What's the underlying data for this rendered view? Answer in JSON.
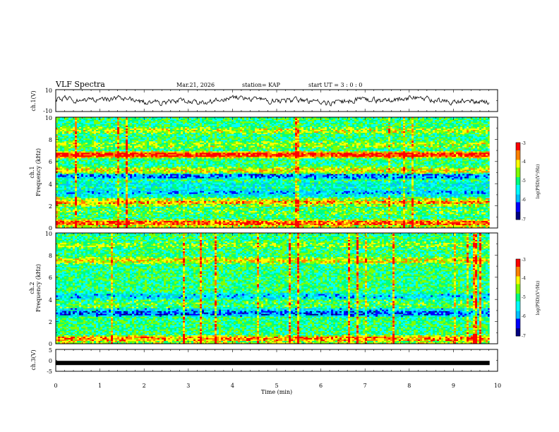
{
  "header": {
    "title": "VLF Spectra",
    "date": "Mar.21, 2026",
    "station": "station= KAP",
    "start_time": "start  UT =   3  : 0  : 0"
  },
  "colorbar": {
    "label": "log(PSD)(V²/Hz)",
    "ticks": [
      "-3",
      "-4",
      "-5",
      "-6",
      "-7"
    ],
    "range": [
      -7,
      -3
    ],
    "colors": [
      "#000080",
      "#0000ff",
      "#00bfff",
      "#00ffff",
      "#00ff7f",
      "#7fff00",
      "#ffff00",
      "#ff8000",
      "#ff0000",
      "#ffffff"
    ]
  },
  "chart_data": [
    {
      "type": "line",
      "name": "ch1-waveform",
      "ylabel": "ch.1(V)",
      "ylim": [
        -10,
        10
      ],
      "ytick_labels": [
        "10",
        "-10"
      ],
      "xlim": [
        0,
        10
      ],
      "trace_end_min": 9.82
    },
    {
      "type": "heatmap",
      "name": "ch1-spectrogram",
      "ylabel": "ch.1",
      "ylabel2": "Frequency (kHz)",
      "ylim": [
        0,
        10
      ],
      "ytick_labels": [
        "0",
        "2",
        "4",
        "6",
        "8",
        "10"
      ],
      "xlim": [
        0,
        10
      ],
      "data_end_min": 9.82,
      "dominant_bands_khz": [
        {
          "center": 0.4,
          "level": -3.5
        },
        {
          "center": 1.5,
          "level": -4.8
        },
        {
          "center": 2.3,
          "level": -3.8
        },
        {
          "center": 3.2,
          "level": -5.8
        },
        {
          "center": 3.9,
          "level": -5.4
        },
        {
          "center": 4.7,
          "level": -6.0
        },
        {
          "center": 5.2,
          "level": -4.2
        },
        {
          "center": 6.6,
          "level": -3.3
        },
        {
          "center": 7.5,
          "level": -4.5
        },
        {
          "center": 8.8,
          "level": -4.4
        }
      ]
    },
    {
      "type": "heatmap",
      "name": "ch2-spectrogram",
      "ylabel": "ch.2",
      "ylabel2": "Frequency (kHz)",
      "ylim": [
        0,
        10
      ],
      "ytick_labels": [
        "0",
        "2",
        "4",
        "6",
        "8",
        "10"
      ],
      "xlim": [
        0,
        10
      ],
      "data_end_min": 9.82,
      "dominant_bands_khz": [
        {
          "center": 0.4,
          "level": -3.8
        },
        {
          "center": 1.6,
          "level": -5.0
        },
        {
          "center": 2.8,
          "level": -6.1
        },
        {
          "center": 3.6,
          "level": -4.8
        },
        {
          "center": 4.3,
          "level": -5.6
        },
        {
          "center": 5.5,
          "level": -5.0
        },
        {
          "center": 7.5,
          "level": -4.2
        },
        {
          "center": 8.9,
          "level": -4.6
        }
      ]
    },
    {
      "type": "line",
      "name": "ch3-waveform",
      "ylabel": "ch.3(V)",
      "ylim": [
        -5,
        5
      ],
      "ytick_labels": [
        "5",
        "0",
        "-5"
      ],
      "xlim": [
        0,
        10
      ],
      "constant_value": -1.2,
      "trace_end_min": 9.82
    }
  ],
  "xaxis": {
    "label": "Time  (min)",
    "tick_labels": [
      "0",
      "1",
      "2",
      "3",
      "4",
      "5",
      "6",
      "7",
      "8",
      "9",
      "10"
    ]
  }
}
